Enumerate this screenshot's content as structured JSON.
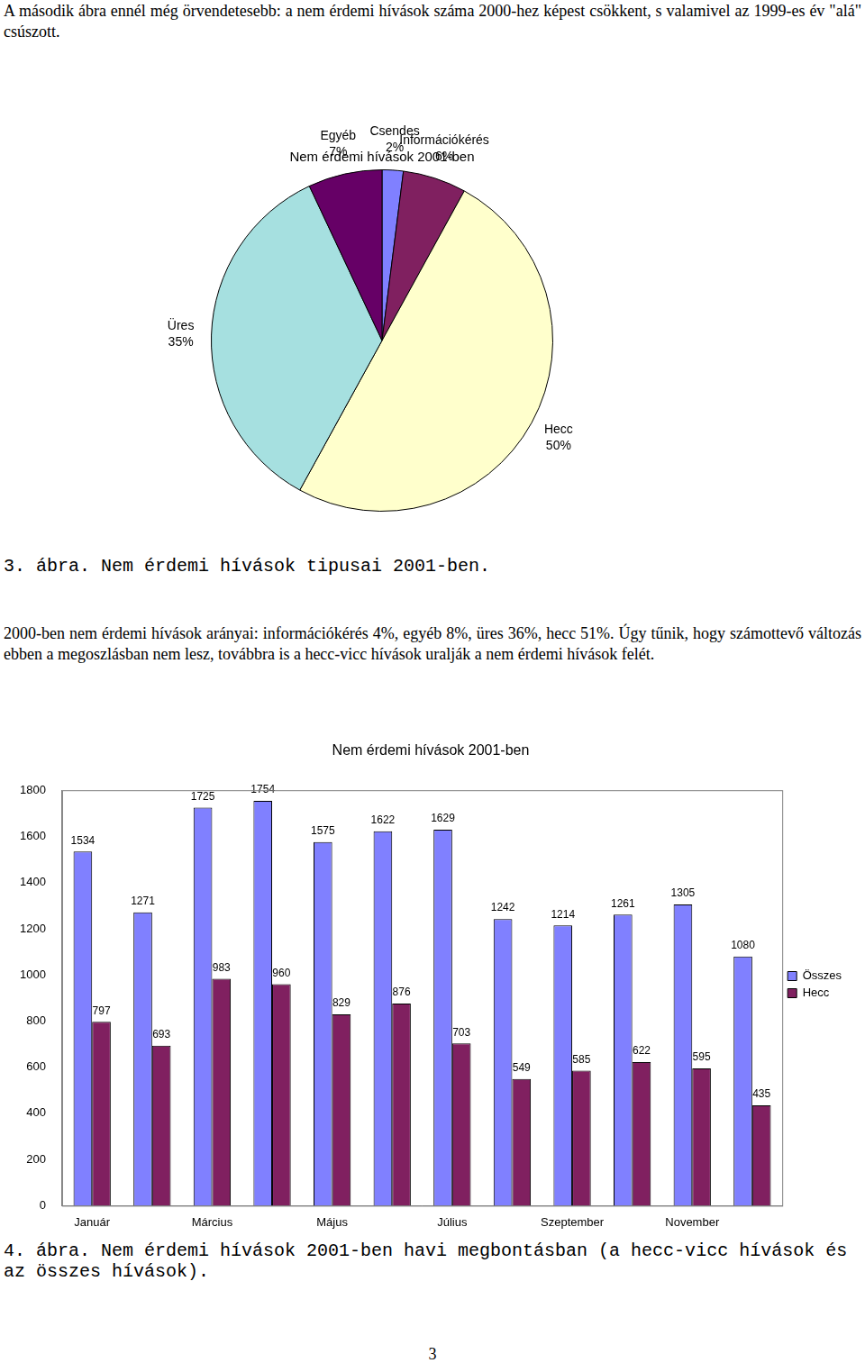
{
  "intro": "A második ábra ennél még örvendetesebb: a nem érdemi hívások száma 2000-hez képest csökkent, s valamivel az 1999-es év \"alá\" csúszott.",
  "captions": [
    "3. ábra. Nem érdemi hívások tipusai 2001-ben.",
    "4. ábra. Nem érdemi hívások 2001-ben havi megbontásban (a hecc-vicc hívások és az összes hívások)."
  ],
  "paragraph": "2000-ben nem érdemi hívások arányai: információkérés 4%, egyéb 8%, üres 36%, hecc 51%. Úgy tűnik, hogy számottevő változás ebben a megoszlásban nem lesz, továbbra is a hecc-vicc hívások uralják a nem érdemi hívások felét.",
  "page_number": "3",
  "chart_data": [
    {
      "type": "pie",
      "title": "Nem érdemi hívások 2001-ben",
      "categories": [
        "Csendes",
        "Információkérés",
        "Hecc",
        "Üres",
        "Egyéb"
      ],
      "values": [
        2,
        6,
        50,
        35,
        7
      ],
      "value_labels": [
        "2%",
        "6%",
        "50%",
        "35%",
        "7%"
      ],
      "colors": [
        "#8080ff",
        "#802060",
        "#ffffcc",
        "#a6e0e0",
        "#660066"
      ]
    },
    {
      "type": "bar",
      "title": "Nem érdemi hívások 2001-ben",
      "categories": [
        "Január",
        null,
        "Március",
        null,
        "Május",
        null,
        "Július",
        null,
        "Szeptember",
        null,
        "November",
        null
      ],
      "series": [
        {
          "name": "Összes",
          "color": "#8080ff",
          "values": [
            1534,
            1271,
            1725,
            1754,
            1575,
            1622,
            1629,
            1242,
            1214,
            1261,
            1305,
            1080
          ]
        },
        {
          "name": "Hecc",
          "color": "#802060",
          "values": [
            797,
            693,
            983,
            960,
            829,
            876,
            703,
            549,
            585,
            622,
            595,
            435
          ]
        }
      ],
      "ylim": [
        0,
        1800
      ],
      "yticks": [
        0,
        200,
        400,
        600,
        800,
        1000,
        1200,
        1400,
        1600,
        1800
      ],
      "grid": false,
      "legend": "right",
      "data_labels": true
    }
  ]
}
